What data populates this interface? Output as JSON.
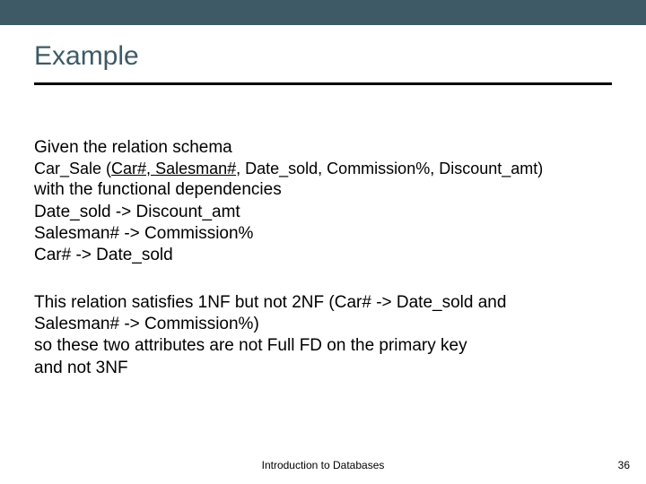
{
  "colors": {
    "topbar": "#3d5a66",
    "title": "#3d5a66",
    "text": "#000000",
    "background": "#ffffff",
    "divider": "#000000"
  },
  "title": "Example",
  "block1": {
    "line1": "Given the relation schema",
    "schema_prefix": "Car_Sale (",
    "schema_key": "Car#, Salesman#",
    "schema_rest": ", Date_sold, Commission%, Discount_amt)",
    "line3": "with the functional dependencies",
    "line4": "Date_sold -> Discount_amt",
    "line5": "Salesman# -> Commission%",
    "line6": "Car# -> Date_sold"
  },
  "block2": {
    "line1": "This relation satisfies 1NF but not 2NF (Car# -> Date_sold and",
    "line2": "Salesman# -> Commission%)",
    "line3": "so these two attributes are not Full FD on the primary key",
    "line4": "and not 3NF"
  },
  "footer": "Introduction to Databases",
  "page_number": "36"
}
